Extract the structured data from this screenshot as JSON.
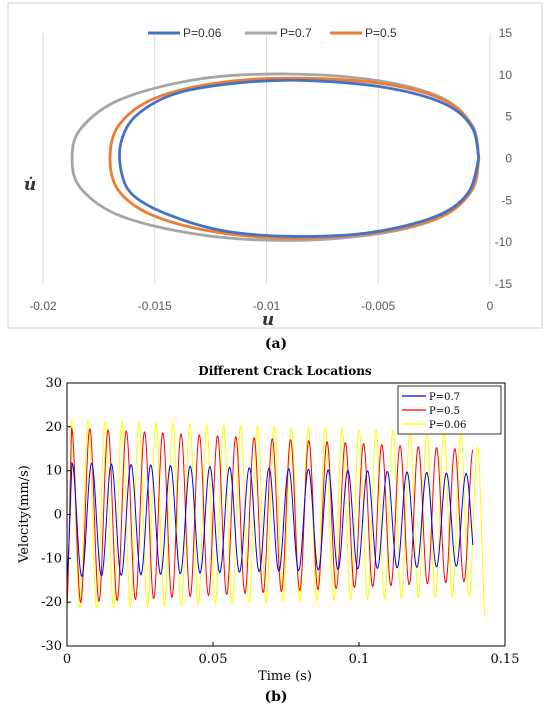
{
  "chart_data": [
    {
      "panel": "(a)",
      "type": "line",
      "title": "",
      "xlabel": "u",
      "ylabel": "u̇",
      "xlim": [
        -0.02,
        0
      ],
      "ylim": [
        -15,
        15
      ],
      "xticks": [
        -0.02,
        -0.015,
        -0.01,
        -0.005,
        0
      ],
      "xtick_labels": [
        "-0.02",
        "-0.015",
        "-0.01",
        "-0.005",
        "0"
      ],
      "yticks": [
        15,
        10,
        5,
        0,
        -5,
        -10,
        -15
      ],
      "ytick_labels": [
        "15",
        "10",
        "5",
        "0",
        "-5",
        "-10",
        "-15"
      ],
      "grid": "vertical",
      "legend": "top",
      "series": [
        {
          "name": "P=0.06",
          "color": "#4472c4",
          "points": [
            [
              -0.0005,
              0
            ],
            [
              -0.0008,
              3.7
            ],
            [
              -0.002,
              6.5
            ],
            [
              -0.0045,
              8.4
            ],
            [
              -0.008,
              9.3
            ],
            [
              -0.011,
              9.1
            ],
            [
              -0.014,
              7.8
            ],
            [
              -0.0158,
              5.2
            ],
            [
              -0.0165,
              2.0
            ],
            [
              -0.0165,
              -1.5
            ],
            [
              -0.016,
              -4.3
            ],
            [
              -0.0145,
              -6.6
            ],
            [
              -0.012,
              -8.6
            ],
            [
              -0.009,
              -9.3
            ],
            [
              -0.0055,
              -8.9
            ],
            [
              -0.0025,
              -7.0
            ],
            [
              -0.001,
              -4.2
            ],
            [
              -0.0005,
              0
            ]
          ]
        },
        {
          "name": "P=0.7",
          "color": "#a5a5a5",
          "points": [
            [
              -0.0005,
              0
            ],
            [
              -0.0008,
              4.0
            ],
            [
              -0.0022,
              7.3
            ],
            [
              -0.005,
              9.3
            ],
            [
              -0.009,
              10.1
            ],
            [
              -0.013,
              9.5
            ],
            [
              -0.0165,
              7.1
            ],
            [
              -0.0183,
              3.6
            ],
            [
              -0.0187,
              0
            ],
            [
              -0.0183,
              -3.6
            ],
            [
              -0.0165,
              -6.9
            ],
            [
              -0.013,
              -9.1
            ],
            [
              -0.009,
              -9.8
            ],
            [
              -0.005,
              -9.0
            ],
            [
              -0.0022,
              -7.0
            ],
            [
              -0.0008,
              -3.8
            ],
            [
              -0.0005,
              0
            ]
          ]
        },
        {
          "name": "P=0.5",
          "color": "#ed7d31",
          "points": [
            [
              -0.0005,
              0
            ],
            [
              -0.0008,
              3.8
            ],
            [
              -0.002,
              6.9
            ],
            [
              -0.0047,
              8.9
            ],
            [
              -0.0085,
              9.6
            ],
            [
              -0.012,
              9.1
            ],
            [
              -0.015,
              7.2
            ],
            [
              -0.0166,
              4.0
            ],
            [
              -0.017,
              0
            ],
            [
              -0.0166,
              -3.9
            ],
            [
              -0.015,
              -6.9
            ],
            [
              -0.012,
              -8.9
            ],
            [
              -0.0085,
              -9.5
            ],
            [
              -0.0047,
              -8.7
            ],
            [
              -0.002,
              -6.7
            ],
            [
              -0.0008,
              -3.6
            ],
            [
              -0.0005,
              0
            ]
          ]
        }
      ]
    },
    {
      "panel": "(b)",
      "type": "line",
      "title": "Different Crack Locations",
      "xlabel": "Time (s)",
      "ylabel": "Velocity(mm/s)",
      "xlim": [
        0,
        0.15
      ],
      "ylim": [
        -30,
        30
      ],
      "xticks": [
        0,
        0.05,
        0.1,
        0.15
      ],
      "xtick_labels": [
        "0",
        "0.05",
        "0.1",
        "0.15"
      ],
      "yticks": [
        30,
        20,
        10,
        0,
        -10,
        -20,
        -30
      ],
      "ytick_labels": [
        "30",
        "20",
        "10",
        "0",
        "-10",
        "-20",
        "-30"
      ],
      "grid": "none",
      "legend": "top-right",
      "series": [
        {
          "name": "P=0.7",
          "color": "#0000ff",
          "t_end": 0.139,
          "period": 0.00675,
          "amp_start": 13,
          "amp_end": 10.5,
          "offset": -1.2,
          "first_min": -15
        },
        {
          "name": "P=0.5",
          "color": "#ff0000",
          "t_end": 0.139,
          "period": 0.00625,
          "amp_start": 20,
          "amp_end": 15,
          "offset": -0.2,
          "first_min": -21
        },
        {
          "name": "P=0.06",
          "color": "#ffff00",
          "t_end": 0.143,
          "period": 0.0058,
          "amp_start": 21.5,
          "amp_end": 18.5,
          "offset": 0,
          "first_min": -22
        }
      ]
    }
  ],
  "captions": {
    "a": "(a)",
    "b": "(b)"
  }
}
